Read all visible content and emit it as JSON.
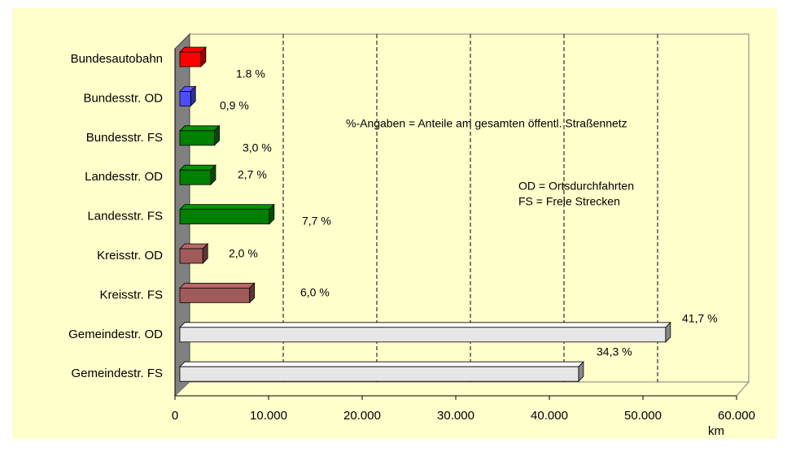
{
  "chart_data": {
    "type": "hbar3d",
    "categories": [
      "Bundesautobahn",
      "Bundesstr. OD",
      "Bundesstr. FS",
      "Landesstr. OD",
      "Landesstr. FS",
      "Kreisstr. OD",
      "Kreisstr. FS",
      "Gemeindestr. OD",
      "Gemeindestr. FS"
    ],
    "values": [
      2250,
      1150,
      3700,
      3300,
      9550,
      2450,
      7450,
      51900,
      42600
    ],
    "colors": [
      "#ff0000",
      "#4d4dff",
      "#008000",
      "#008000",
      "#008000",
      "#a05a5a",
      "#a05a5a",
      "#e6e6e6",
      "#e6e6e6"
    ],
    "share_labels": [
      "1.8 %",
      "0,9 %",
      "3,0 %",
      "2,7 %",
      "7,7 %",
      "2,0 %",
      "6,0 %",
      "41,7 %",
      "34,3 %"
    ],
    "xlim": [
      0,
      60000
    ],
    "xticks": [
      0,
      {
        "value": 10000,
        "label": "10.000"
      },
      {
        "value": 20000,
        "label": "20.000"
      },
      {
        "value": 30000,
        "label": "30.000"
      },
      {
        "value": 40000,
        "label": "40.000"
      },
      {
        "value": 50000,
        "label": "50.000"
      },
      {
        "value": 60000,
        "label": "60.000"
      }
    ],
    "x_label": "km",
    "grid": true,
    "annotations": [
      "%-Angaben = Anteile am gesamten öffentl. Straßennetz",
      "OD = Ortsdurchfahrten",
      "FS  = Freie Strecken"
    ]
  }
}
